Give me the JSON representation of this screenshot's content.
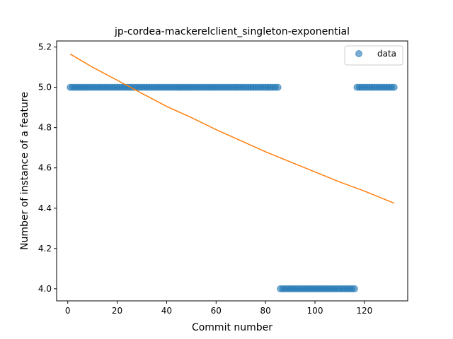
{
  "chart_data": {
    "type": "scatter",
    "title": "jp-cordea-mackerelclient_singleton-exponential",
    "xlabel": "Commit number",
    "ylabel": "Number of instance of a feature",
    "xlim": [
      -4.5,
      137.5
    ],
    "ylim": [
      3.94,
      5.23
    ],
    "xticks": [
      0,
      20,
      40,
      60,
      80,
      100,
      120
    ],
    "yticks": [
      4.0,
      4.2,
      4.4,
      4.6,
      4.8,
      5.0,
      5.2
    ],
    "xtick_labels": [
      "0",
      "20",
      "40",
      "60",
      "80",
      "100",
      "120"
    ],
    "ytick_labels": [
      "4.0",
      "4.2",
      "4.4",
      "4.6",
      "4.8",
      "5.0",
      "5.2"
    ],
    "legend": {
      "position": "top-right",
      "entries": [
        "data"
      ]
    },
    "series": [
      {
        "name": "data",
        "kind": "scatter",
        "color": "#1f77b4",
        "segments": [
          {
            "x_start": 1,
            "x_end": 85,
            "y": 5.0
          },
          {
            "x_start": 86,
            "x_end": 116,
            "y": 4.0
          },
          {
            "x_start": 117,
            "x_end": 132,
            "y": 5.0
          }
        ]
      },
      {
        "kind": "line",
        "color": "#ff7f0e",
        "x": [
          1,
          10,
          20,
          30,
          40,
          50,
          60,
          70,
          80,
          90,
          100,
          110,
          120,
          132
        ],
        "y": [
          5.165,
          5.1,
          5.035,
          4.97,
          4.905,
          4.85,
          4.79,
          4.735,
          4.68,
          4.63,
          4.58,
          4.53,
          4.485,
          4.425
        ]
      }
    ]
  }
}
